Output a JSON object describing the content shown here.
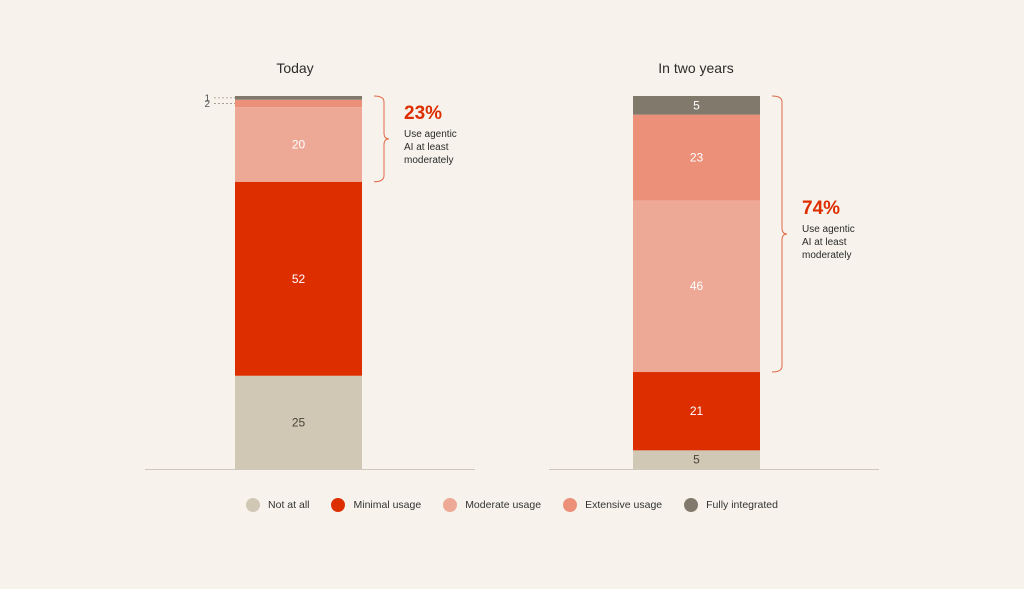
{
  "chart_data": {
    "type": "bar",
    "stacked": true,
    "categories": [
      "Today",
      "In two years"
    ],
    "series": [
      {
        "name": "Not at all",
        "color": "#d0c7b5",
        "values": [
          25,
          5
        ]
      },
      {
        "name": "Minimal usage",
        "color": "#dd2e00",
        "values": [
          52,
          21
        ]
      },
      {
        "name": "Moderate usage",
        "color": "#eda995",
        "values": [
          20,
          46
        ]
      },
      {
        "name": "Extensive usage",
        "color": "#ec907a",
        "values": [
          2,
          23
        ]
      },
      {
        "name": "Fully integrated",
        "color": "#817a6c",
        "values": [
          1,
          5
        ]
      }
    ],
    "callouts": [
      {
        "bar": "Today",
        "pct": "23%",
        "lines": [
          "Use agentic",
          "AI at least",
          "moderately"
        ]
      },
      {
        "bar": "In two years",
        "pct": "74%",
        "lines": [
          "Use  agentic",
          "AI at least",
          "moderately"
        ]
      }
    ],
    "legend_position": "bottom",
    "grid": false,
    "ylim": [
      0,
      100
    ]
  }
}
